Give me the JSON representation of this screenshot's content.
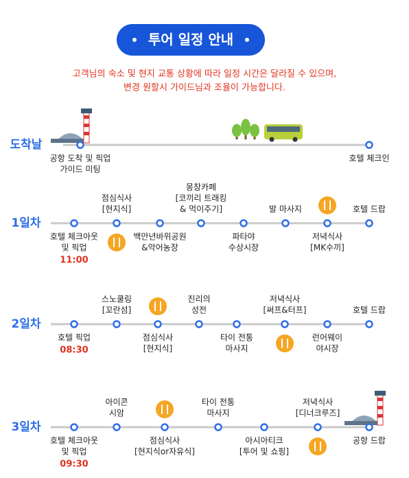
{
  "header": {
    "title": "투어 일정 안내"
  },
  "notice": [
    "고객님의 숙소 및 현지 교통 상황에 따라 일정 시간은 달라질 수 있으며,",
    "변경 원할시 가이드님과 조율이 가능합니다."
  ],
  "days": [
    {
      "label": "도착날",
      "stops": [
        {
          "lines": [
            "공항 도착 및 픽업",
            "가이드 미팅"
          ]
        },
        {
          "lines": [
            "호텔 체크인"
          ]
        }
      ]
    },
    {
      "label": "1일차",
      "stops": [
        {
          "lines": [
            "호텔 체크아웃",
            "및 픽업"
          ],
          "time": "11:00"
        },
        {
          "lines": [
            "점심식사",
            "[현지식]"
          ]
        },
        {
          "lines": [
            "백만년바위공원",
            "&악어농장"
          ]
        },
        {
          "lines": [
            "몽창카페",
            "[코끼리 트래킹",
            "& 먹이주기]"
          ]
        },
        {
          "lines": [
            "파타야",
            "수상시장"
          ]
        },
        {
          "lines": [
            "발 마사지"
          ]
        },
        {
          "lines": [
            "저녁식사",
            "[MK수끼]"
          ]
        },
        {
          "lines": [
            "호텔 드랍"
          ]
        }
      ]
    },
    {
      "label": "2일차",
      "stops": [
        {
          "lines": [
            "호텔 픽업"
          ],
          "time": "08:30"
        },
        {
          "lines": [
            "스노쿨링",
            "[꼬란섬]"
          ]
        },
        {
          "lines": [
            "점심식사",
            "[현지식]"
          ]
        },
        {
          "lines": [
            "진리의",
            "성전"
          ]
        },
        {
          "lines": [
            "타이 전통",
            "마사지"
          ]
        },
        {
          "lines": [
            "저녁식사",
            "[써프&터프]"
          ]
        },
        {
          "lines": [
            "런어웨이",
            "야시장"
          ]
        },
        {
          "lines": [
            "호텔 드랍"
          ]
        }
      ]
    },
    {
      "label": "3일차",
      "stops": [
        {
          "lines": [
            "호텔 체크아웃",
            "및 픽업"
          ],
          "time": "09:30"
        },
        {
          "lines": [
            "아이콘",
            "시암"
          ]
        },
        {
          "lines": [
            "점심식사",
            "[현지식or자유식]"
          ]
        },
        {
          "lines": [
            "타이 전통",
            "마사지"
          ]
        },
        {
          "lines": [
            "아시아티크",
            "[투어 및 쇼핑]"
          ]
        },
        {
          "lines": [
            "저녁식사",
            "[디너크루즈]"
          ]
        },
        {
          "lines": [
            "공항 드랍"
          ]
        }
      ]
    }
  ]
}
